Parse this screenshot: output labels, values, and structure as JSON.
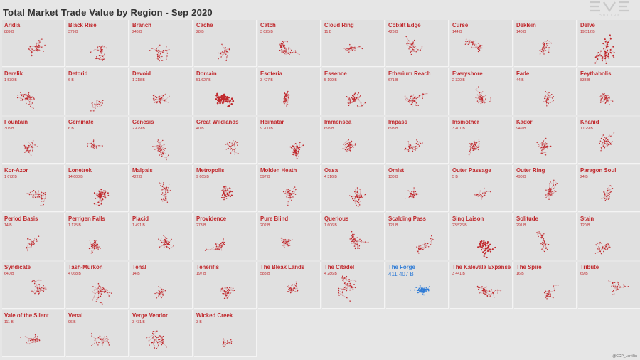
{
  "title": "Total Market Trade Value by Region - Sep 2020",
  "logo": {
    "text": "EVE",
    "subtext": "ONLINE"
  },
  "credit": "@CCP_Lerrikin",
  "colors": {
    "normal": "#c0282c",
    "highlight": "#2e7bd6",
    "tile": "#e0e0e0"
  },
  "chart_data": {
    "type": "small-multiples",
    "title": "Total Market Trade Value by Region - Sep 2020",
    "highlight": "The Forge",
    "regions": [
      {
        "name": "Aridia",
        "value": "889 B"
      },
      {
        "name": "Black Rise",
        "value": "379 B"
      },
      {
        "name": "Branch",
        "value": "246 B"
      },
      {
        "name": "Cache",
        "value": "28 B"
      },
      {
        "name": "Catch",
        "value": "3 025 B"
      },
      {
        "name": "Cloud Ring",
        "value": "11 B"
      },
      {
        "name": "Cobalt Edge",
        "value": "426 B"
      },
      {
        "name": "Curse",
        "value": "144 B"
      },
      {
        "name": "Deklein",
        "value": "140 B"
      },
      {
        "name": "Delve",
        "value": "19 512 B"
      },
      {
        "name": "Derelik",
        "value": "1 530 B"
      },
      {
        "name": "Detorid",
        "value": "6 B"
      },
      {
        "name": "Devoid",
        "value": "1 218 B"
      },
      {
        "name": "Domain",
        "value": "51 627 B"
      },
      {
        "name": "Esoteria",
        "value": "3 427 B"
      },
      {
        "name": "Essence",
        "value": "5 199 B"
      },
      {
        "name": "Etherium Reach",
        "value": "671 B"
      },
      {
        "name": "Everyshore",
        "value": "2 320 B"
      },
      {
        "name": "Fade",
        "value": "44 B"
      },
      {
        "name": "Feythabolis",
        "value": "833 B"
      },
      {
        "name": "Fountain",
        "value": "308 B"
      },
      {
        "name": "Geminate",
        "value": "6 B"
      },
      {
        "name": "Genesis",
        "value": "2 479 B"
      },
      {
        "name": "Great Wildlands",
        "value": "40 B"
      },
      {
        "name": "Heimatar",
        "value": "9 200 B"
      },
      {
        "name": "Immensea",
        "value": "698 B"
      },
      {
        "name": "Impass",
        "value": "693 B"
      },
      {
        "name": "Insmother",
        "value": "3 401 B"
      },
      {
        "name": "Kador",
        "value": "949 B"
      },
      {
        "name": "Khanid",
        "value": "1 029 B"
      },
      {
        "name": "Kor-Azor",
        "value": "1 072 B"
      },
      {
        "name": "Lonetrek",
        "value": "14 608 B"
      },
      {
        "name": "Malpais",
        "value": "422 B"
      },
      {
        "name": "Metropolis",
        "value": "9 665 B"
      },
      {
        "name": "Molden Heath",
        "value": "597 B"
      },
      {
        "name": "Oasa",
        "value": "4 316 B"
      },
      {
        "name": "Omist",
        "value": "130 B"
      },
      {
        "name": "Outer Passage",
        "value": "5 B"
      },
      {
        "name": "Outer Ring",
        "value": "490 B"
      },
      {
        "name": "Paragon Soul",
        "value": "24 B"
      },
      {
        "name": "Period Basis",
        "value": "14 B"
      },
      {
        "name": "Perrigen Falls",
        "value": "1 175 B"
      },
      {
        "name": "Placid",
        "value": "1 491 B"
      },
      {
        "name": "Providence",
        "value": "273 B"
      },
      {
        "name": "Pure Blind",
        "value": "202 B"
      },
      {
        "name": "Querious",
        "value": "1 606 B"
      },
      {
        "name": "Scalding Pass",
        "value": "121 B"
      },
      {
        "name": "Sinq Laison",
        "value": "23 526 B"
      },
      {
        "name": "Solitude",
        "value": "291 B"
      },
      {
        "name": "Stain",
        "value": "120 B"
      },
      {
        "name": "Syndicate",
        "value": "640 B"
      },
      {
        "name": "Tash-Murkon",
        "value": "4 068 B"
      },
      {
        "name": "Tenal",
        "value": "14 B"
      },
      {
        "name": "Tenerifis",
        "value": "197 B"
      },
      {
        "name": "The Bleak Lands",
        "value": "588 B"
      },
      {
        "name": "The Citadel",
        "value": "4 286 B"
      },
      {
        "name": "The Forge",
        "value": "411 407 B"
      },
      {
        "name": "The Kalevala Expanse",
        "value": "3 441 B"
      },
      {
        "name": "The Spire",
        "value": "16 B"
      },
      {
        "name": "Tribute",
        "value": "69 B"
      },
      {
        "name": "Vale of the Silent",
        "value": "111 B"
      },
      {
        "name": "Venal",
        "value": "96 B"
      },
      {
        "name": "Verge Vendor",
        "value": "3 431 B"
      },
      {
        "name": "Wicked Creek",
        "value": "3 B"
      }
    ]
  }
}
